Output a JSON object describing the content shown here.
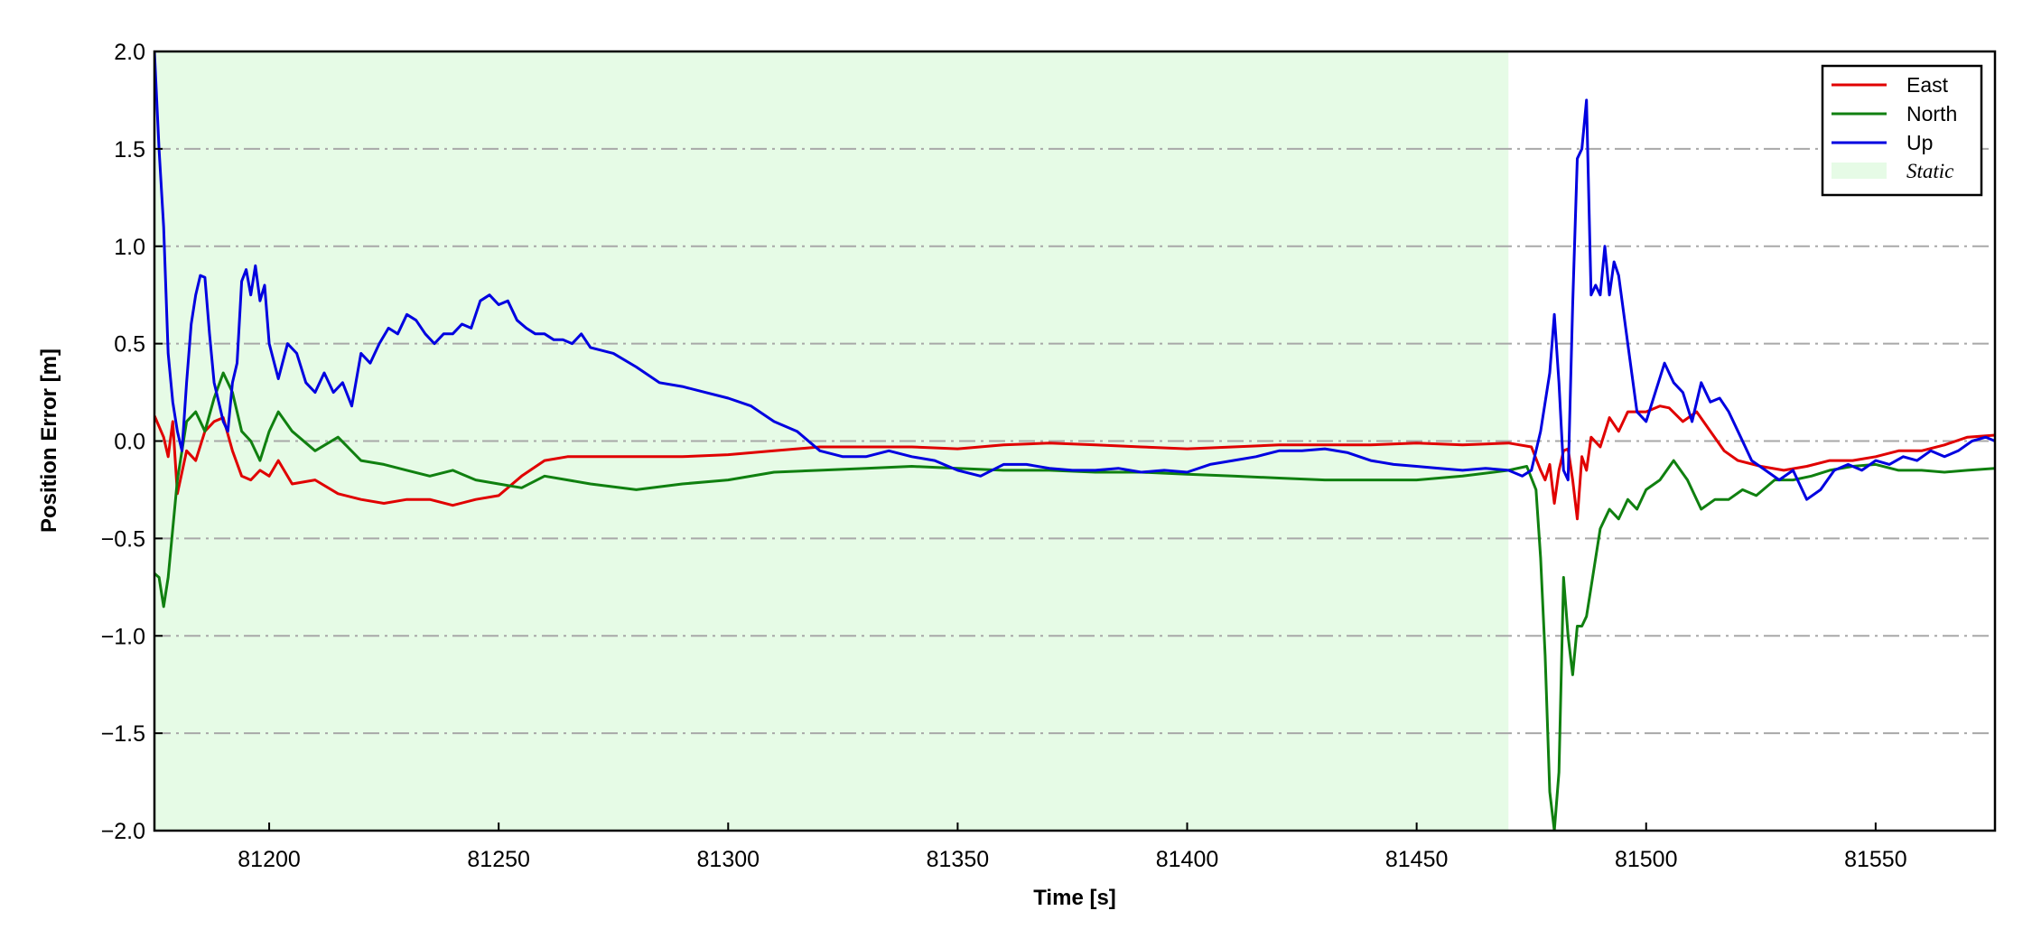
{
  "chart_data": {
    "type": "line",
    "xlabel": "Time [s]",
    "ylabel": "Position Error [m]",
    "xlim": [
      81175,
      81576
    ],
    "ylim": [
      -2.0,
      2.0
    ],
    "x_ticks": [
      81200,
      81250,
      81300,
      81350,
      81400,
      81450,
      81500,
      81550
    ],
    "x_tick_labels": [
      "81200",
      "81250",
      "81300",
      "81350",
      "81400",
      "81450",
      "81500",
      "81550"
    ],
    "y_ticks": [
      -2.0,
      -1.5,
      -1.0,
      -0.5,
      0.0,
      0.5,
      1.0,
      1.5,
      2.0
    ],
    "y_tick_labels": [
      "−2.0",
      "−1.5",
      "−1.0",
      "−0.5",
      "0.0",
      "0.5",
      "1.0",
      "1.5",
      "2.0"
    ],
    "grid": "horizontal dash-dot",
    "legend_position": "top-right",
    "shaded_region": {
      "label": "Static",
      "x_start": 81175,
      "x_end": 81470,
      "color": "#e6fbe6"
    },
    "series": [
      {
        "name": "East",
        "color": "#e00000",
        "x": [
          81175,
          81177,
          81178,
          81179,
          81180,
          81182,
          81184,
          81186,
          81188,
          81190,
          81192,
          81194,
          81196,
          81198,
          81200,
          81202,
          81205,
          81210,
          81215,
          81220,
          81225,
          81230,
          81235,
          81240,
          81245,
          81250,
          81255,
          81260,
          81265,
          81270,
          81280,
          81290,
          81300,
          81310,
          81320,
          81330,
          81340,
          81350,
          81360,
          81370,
          81380,
          81390,
          81400,
          81410,
          81420,
          81430,
          81440,
          81450,
          81460,
          81470,
          81475,
          81477,
          81478,
          81479,
          81480,
          81481,
          81482,
          81483,
          81484,
          81485,
          81486,
          81487,
          81488,
          81490,
          81492,
          81494,
          81496,
          81498,
          81500,
          81503,
          81505,
          81508,
          81511,
          81514,
          81517,
          81520,
          81525,
          81530,
          81535,
          81540,
          81545,
          81550,
          81555,
          81560,
          81565,
          81570,
          81576
        ],
        "y": [
          0.13,
          0.02,
          -0.08,
          0.1,
          -0.27,
          -0.05,
          -0.1,
          0.05,
          0.1,
          0.12,
          -0.05,
          -0.18,
          -0.2,
          -0.15,
          -0.18,
          -0.1,
          -0.22,
          -0.2,
          -0.27,
          -0.3,
          -0.32,
          -0.3,
          -0.3,
          -0.33,
          -0.3,
          -0.28,
          -0.18,
          -0.1,
          -0.08,
          -0.08,
          -0.08,
          -0.08,
          -0.07,
          -0.05,
          -0.03,
          -0.03,
          -0.03,
          -0.04,
          -0.02,
          -0.01,
          -0.02,
          -0.03,
          -0.04,
          -0.03,
          -0.02,
          -0.02,
          -0.02,
          -0.01,
          -0.02,
          -0.01,
          -0.03,
          -0.15,
          -0.2,
          -0.12,
          -0.32,
          -0.15,
          -0.05,
          -0.04,
          -0.2,
          -0.4,
          -0.08,
          -0.15,
          0.02,
          -0.03,
          0.12,
          0.05,
          0.15,
          0.15,
          0.15,
          0.18,
          0.17,
          0.1,
          0.15,
          0.05,
          -0.05,
          -0.1,
          -0.13,
          -0.15,
          -0.13,
          -0.1,
          -0.1,
          -0.08,
          -0.05,
          -0.05,
          -0.02,
          0.02,
          0.03
        ]
      },
      {
        "name": "North",
        "color": "#108010",
        "x": [
          81175,
          81176,
          81177,
          81178,
          81180,
          81182,
          81184,
          81186,
          81188,
          81190,
          81192,
          81194,
          81196,
          81198,
          81200,
          81202,
          81205,
          81210,
          81215,
          81220,
          81225,
          81230,
          81235,
          81240,
          81245,
          81250,
          81255,
          81260,
          81265,
          81270,
          81280,
          81290,
          81300,
          81310,
          81320,
          81330,
          81340,
          81350,
          81360,
          81370,
          81380,
          81390,
          81400,
          81410,
          81420,
          81430,
          81440,
          81450,
          81460,
          81470,
          81474,
          81476,
          81477,
          81478,
          81479,
          81480,
          81481,
          81482,
          81483,
          81484,
          81485,
          81486,
          81487,
          81488,
          81490,
          81492,
          81494,
          81496,
          81498,
          81500,
          81503,
          81506,
          81509,
          81512,
          81515,
          81518,
          81521,
          81524,
          81528,
          81532,
          81536,
          81540,
          81545,
          81550,
          81555,
          81560,
          81565,
          81570,
          81576
        ],
        "y": [
          -0.68,
          -0.7,
          -0.85,
          -0.7,
          -0.2,
          0.1,
          0.15,
          0.05,
          0.22,
          0.35,
          0.25,
          0.05,
          0.0,
          -0.1,
          0.05,
          0.15,
          0.05,
          -0.05,
          0.02,
          -0.1,
          -0.12,
          -0.15,
          -0.18,
          -0.15,
          -0.2,
          -0.22,
          -0.24,
          -0.18,
          -0.2,
          -0.22,
          -0.25,
          -0.22,
          -0.2,
          -0.16,
          -0.15,
          -0.14,
          -0.13,
          -0.14,
          -0.15,
          -0.15,
          -0.16,
          -0.16,
          -0.17,
          -0.18,
          -0.19,
          -0.2,
          -0.2,
          -0.2,
          -0.18,
          -0.15,
          -0.13,
          -0.25,
          -0.6,
          -1.1,
          -1.8,
          -2.0,
          -1.7,
          -0.7,
          -1.0,
          -1.2,
          -0.95,
          -0.95,
          -0.9,
          -0.75,
          -0.45,
          -0.35,
          -0.4,
          -0.3,
          -0.35,
          -0.25,
          -0.2,
          -0.1,
          -0.2,
          -0.35,
          -0.3,
          -0.3,
          -0.25,
          -0.28,
          -0.2,
          -0.2,
          -0.18,
          -0.15,
          -0.13,
          -0.12,
          -0.15,
          -0.15,
          -0.16,
          -0.15,
          -0.14
        ]
      },
      {
        "name": "Up",
        "color": "#0000e0",
        "x": [
          81175,
          81176,
          81177,
          81178,
          81179,
          81180,
          81181,
          81182,
          81183,
          81184,
          81185,
          81186,
          81187,
          81188,
          81189,
          81190,
          81191,
          81192,
          81193,
          81194,
          81195,
          81196,
          81197,
          81198,
          81199,
          81200,
          81202,
          81204,
          81206,
          81208,
          81210,
          81212,
          81214,
          81216,
          81218,
          81220,
          81222,
          81224,
          81226,
          81228,
          81230,
          81232,
          81234,
          81236,
          81238,
          81240,
          81242,
          81244,
          81246,
          81248,
          81250,
          81252,
          81254,
          81256,
          81258,
          81260,
          81262,
          81264,
          81266,
          81268,
          81270,
          81275,
          81280,
          81285,
          81290,
          81295,
          81300,
          81305,
          81310,
          81315,
          81320,
          81325,
          81330,
          81335,
          81340,
          81345,
          81350,
          81355,
          81360,
          81365,
          81370,
          81375,
          81380,
          81385,
          81390,
          81395,
          81400,
          81405,
          81410,
          81415,
          81420,
          81425,
          81430,
          81435,
          81440,
          81445,
          81450,
          81455,
          81460,
          81465,
          81470,
          81473,
          81475,
          81477,
          81479,
          81480,
          81481,
          81482,
          81483,
          81484,
          81485,
          81486,
          81487,
          81488,
          81489,
          81490,
          81491,
          81492,
          81493,
          81494,
          81496,
          81498,
          81500,
          81502,
          81504,
          81506,
          81508,
          81510,
          81512,
          81514,
          81516,
          81518,
          81520,
          81523,
          81526,
          81529,
          81532,
          81535,
          81538,
          81541,
          81544,
          81547,
          81550,
          81553,
          81556,
          81559,
          81562,
          81565,
          81568,
          81571,
          81574,
          81576
        ],
        "y": [
          2.0,
          1.5,
          1.1,
          0.45,
          0.2,
          0.05,
          -0.05,
          0.3,
          0.6,
          0.75,
          0.85,
          0.84,
          0.55,
          0.3,
          0.2,
          0.1,
          0.05,
          0.3,
          0.4,
          0.82,
          0.88,
          0.75,
          0.9,
          0.72,
          0.8,
          0.5,
          0.32,
          0.5,
          0.45,
          0.3,
          0.25,
          0.35,
          0.25,
          0.3,
          0.18,
          0.45,
          0.4,
          0.5,
          0.58,
          0.55,
          0.65,
          0.62,
          0.55,
          0.5,
          0.55,
          0.55,
          0.6,
          0.58,
          0.72,
          0.75,
          0.7,
          0.72,
          0.62,
          0.58,
          0.55,
          0.55,
          0.52,
          0.52,
          0.5,
          0.55,
          0.48,
          0.45,
          0.38,
          0.3,
          0.28,
          0.25,
          0.22,
          0.18,
          0.1,
          0.05,
          -0.05,
          -0.08,
          -0.08,
          -0.05,
          -0.08,
          -0.1,
          -0.15,
          -0.18,
          -0.12,
          -0.12,
          -0.14,
          -0.15,
          -0.15,
          -0.14,
          -0.16,
          -0.15,
          -0.16,
          -0.12,
          -0.1,
          -0.08,
          -0.05,
          -0.05,
          -0.04,
          -0.06,
          -0.1,
          -0.12,
          -0.13,
          -0.14,
          -0.15,
          -0.14,
          -0.15,
          -0.18,
          -0.15,
          0.05,
          0.35,
          0.65,
          0.3,
          -0.15,
          -0.2,
          0.7,
          1.45,
          1.5,
          1.75,
          0.75,
          0.8,
          0.75,
          1.0,
          0.75,
          0.92,
          0.85,
          0.5,
          0.15,
          0.1,
          0.25,
          0.4,
          0.3,
          0.25,
          0.1,
          0.3,
          0.2,
          0.22,
          0.15,
          0.05,
          -0.1,
          -0.15,
          -0.2,
          -0.15,
          -0.3,
          -0.25,
          -0.15,
          -0.12,
          -0.15,
          -0.1,
          -0.12,
          -0.08,
          -0.1,
          -0.05,
          -0.08,
          -0.05,
          0.0,
          0.02,
          0.0
        ]
      }
    ]
  }
}
